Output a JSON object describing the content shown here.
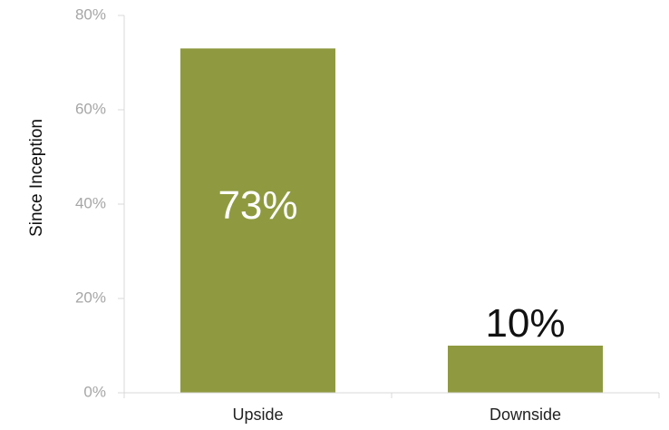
{
  "chart_data": {
    "type": "bar",
    "categories": [
      "Upside",
      "Downside"
    ],
    "values": [
      73,
      10
    ],
    "data_labels": [
      "73%",
      "10%"
    ],
    "title": "",
    "xlabel": "",
    "ylabel": "Since Inception",
    "ylim": [
      0,
      80
    ],
    "yticks": [
      0,
      20,
      40,
      60,
      80
    ],
    "ytick_labels": [
      "0%",
      "20%",
      "40%",
      "60%",
      "80%"
    ],
    "grid": false,
    "legend": "none",
    "colors": {
      "bar": "#8f9a40",
      "axis": "#d9d9d9",
      "tick_text": "#a6a6a6",
      "label_inside": "#ffffff",
      "label_above": "#111111"
    }
  }
}
